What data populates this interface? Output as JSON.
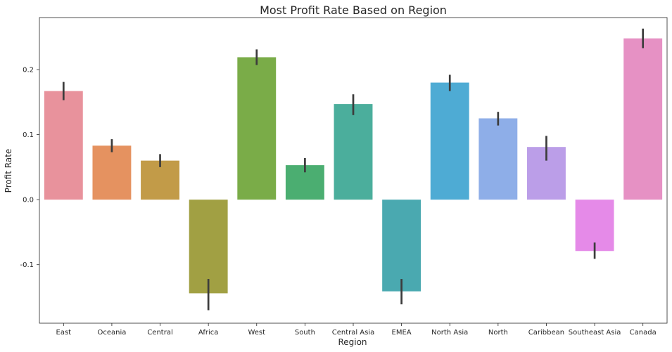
{
  "chart_data": {
    "type": "bar",
    "title": "Most Profit Rate Based on Region",
    "xlabel": "Region",
    "ylabel": "Profit Rate",
    "categories": [
      "East",
      "Oceania",
      "Central",
      "Africa",
      "West",
      "South",
      "Central Asia",
      "EMEA",
      "North Asia",
      "North",
      "Caribbean",
      "Southeast Asia",
      "Canada"
    ],
    "values": [
      0.167,
      0.083,
      0.06,
      -0.144,
      0.219,
      0.053,
      0.147,
      -0.141,
      0.18,
      0.125,
      0.081,
      -0.079,
      0.248
    ],
    "ci_low": [
      0.153,
      0.073,
      0.05,
      -0.17,
      0.207,
      0.042,
      0.13,
      -0.161,
      0.167,
      0.114,
      0.06,
      -0.091,
      0.233
    ],
    "ci_high": [
      0.181,
      0.093,
      0.07,
      -0.122,
      0.231,
      0.064,
      0.162,
      -0.122,
      0.192,
      0.135,
      0.098,
      -0.066,
      0.263
    ],
    "colors": [
      "#e8929c",
      "#e59260",
      "#c29b48",
      "#a1a043",
      "#7aac48",
      "#4bae71",
      "#4bae9c",
      "#4aa9b0",
      "#4eabd4",
      "#8eaee8",
      "#bb9ee8",
      "#e58ae8",
      "#e691c4"
    ],
    "errorbar_color": "#3c3c3c",
    "ylim": [
      -0.19,
      0.28
    ],
    "yticks": [
      "-0.1",
      "0.0",
      "0.1",
      "0.2"
    ],
    "grid": false,
    "legend": "none"
  }
}
